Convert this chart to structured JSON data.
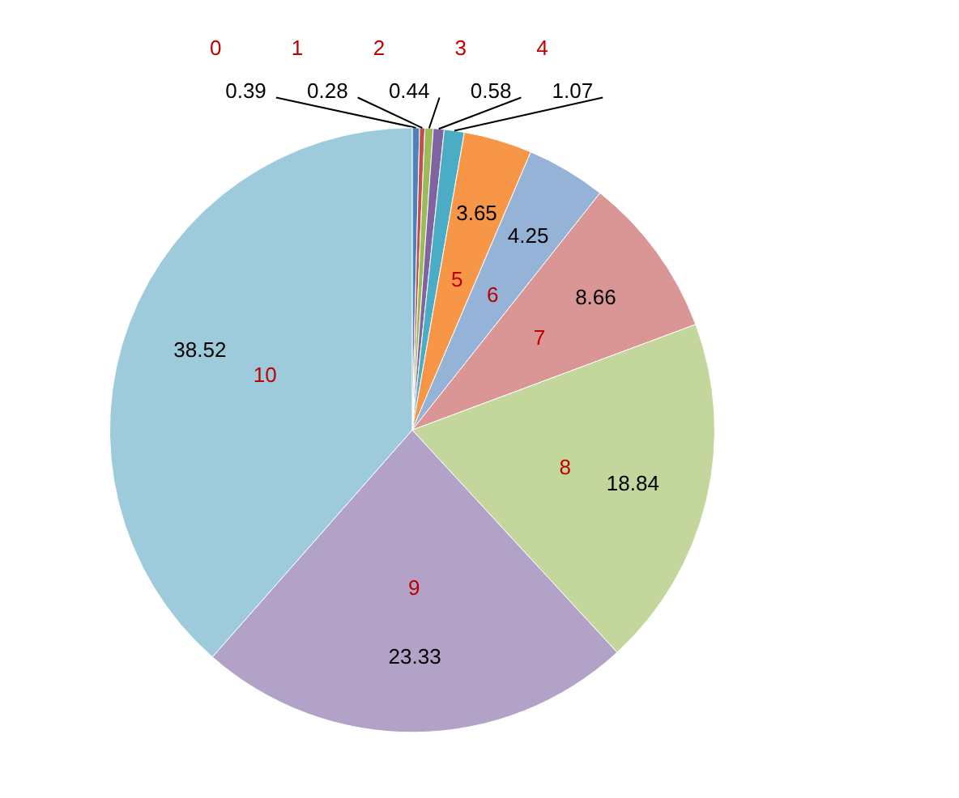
{
  "chart_data": {
    "type": "pie",
    "categories": [
      "0",
      "1",
      "2",
      "3",
      "4",
      "5",
      "6",
      "7",
      "8",
      "9",
      "10"
    ],
    "values": [
      0.39,
      0.28,
      0.44,
      0.58,
      1.07,
      3.65,
      4.25,
      8.66,
      18.84,
      23.33,
      38.52
    ],
    "colors": [
      "#4f81bd",
      "#c0504d",
      "#9bbb59",
      "#8064a2",
      "#4bacc6",
      "#f79646",
      "#95b3d7",
      "#d99694",
      "#c3d69b",
      "#b2a2c7",
      "#9dcbdb"
    ],
    "data_labels": true
  }
}
